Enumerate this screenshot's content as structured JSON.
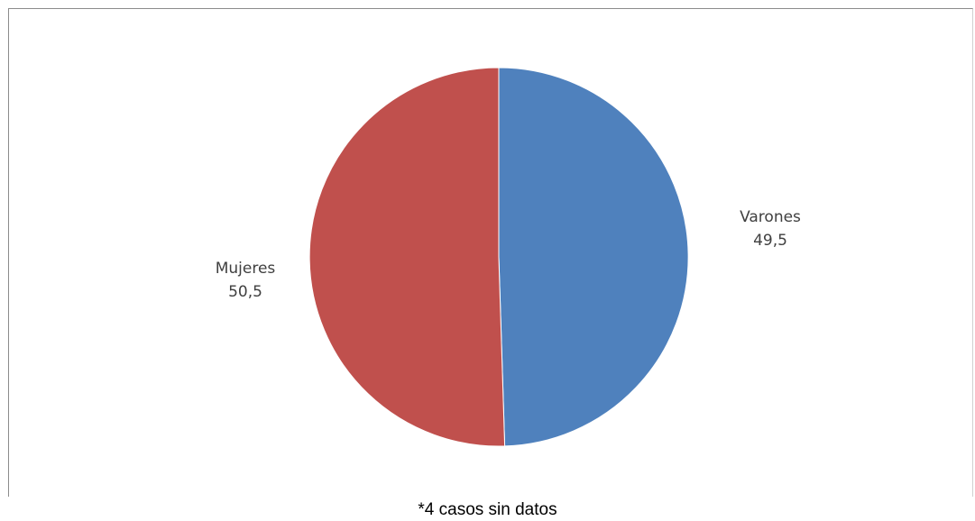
{
  "chart_data": {
    "type": "pie",
    "slices": [
      {
        "name": "Varones",
        "value": 49.5,
        "value_label": "49,5",
        "color": "#4f81bd"
      },
      {
        "name": "Mujeres",
        "value": 50.5,
        "value_label": "50,5",
        "color": "#c0504d"
      }
    ],
    "title": "",
    "legend": "none"
  },
  "footnote": "*4 casos sin datos"
}
